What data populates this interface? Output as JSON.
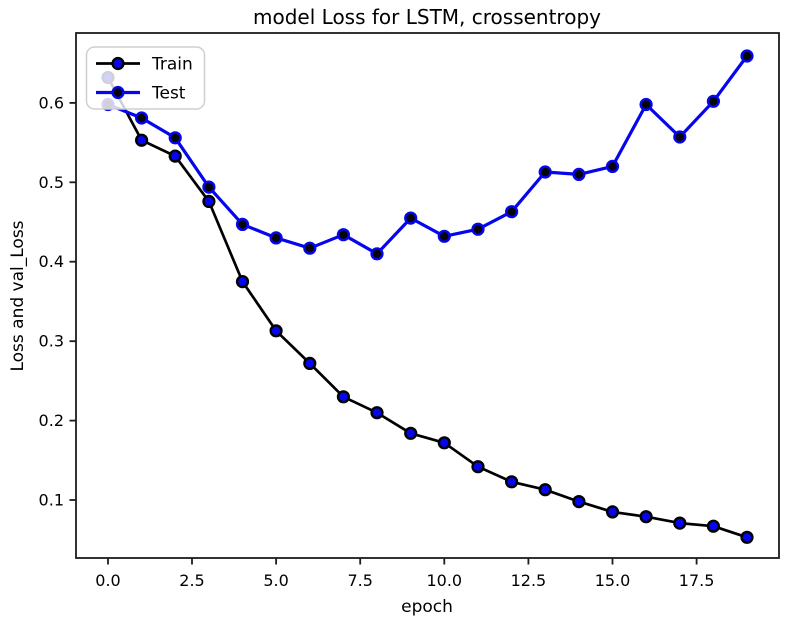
{
  "chart_data": {
    "type": "line",
    "title": "model Loss for LSTM, crossentropy",
    "xlabel": "epoch",
    "ylabel": "Loss and val_Loss",
    "grid": false,
    "background_color": "#ffffff",
    "axis_color": "#1c1c1c",
    "xlim": [
      -0.95,
      19.95
    ],
    "ylim": [
      0.027,
      0.688
    ],
    "x": [
      0,
      1,
      2,
      3,
      4,
      5,
      6,
      7,
      8,
      9,
      10,
      11,
      12,
      13,
      14,
      15,
      16,
      17,
      18,
      19
    ],
    "series": [
      {
        "name": "Train",
        "line_color": "#000000",
        "marker": "o",
        "marker_face": "#0505ee",
        "marker_edge": "#000000",
        "values": [
          0.632,
          0.553,
          0.533,
          0.476,
          0.375,
          0.313,
          0.272,
          0.23,
          0.21,
          0.184,
          0.172,
          0.142,
          0.123,
          0.113,
          0.098,
          0.085,
          0.079,
          0.071,
          0.067,
          0.053
        ]
      },
      {
        "name": "Test",
        "line_color": "#0505ee",
        "marker": "o",
        "marker_face": "#050508",
        "marker_edge": "#0505ee",
        "values": [
          0.598,
          0.581,
          0.556,
          0.494,
          0.447,
          0.43,
          0.417,
          0.434,
          0.41,
          0.455,
          0.432,
          0.441,
          0.463,
          0.513,
          0.51,
          0.52,
          0.598,
          0.557,
          0.602,
          0.659
        ]
      }
    ],
    "x_tick_values": [
      0,
      2.5,
      5,
      7.5,
      10,
      12.5,
      15,
      17.5
    ],
    "x_tick_labels": [
      "0.0",
      "2.5",
      "5.0",
      "7.5",
      "10.0",
      "12.5",
      "15.0",
      "17.5"
    ],
    "y_tick_values": [
      0.1,
      0.2,
      0.3,
      0.4,
      0.5,
      0.6
    ],
    "y_tick_labels": [
      "0.1",
      "0.2",
      "0.3",
      "0.4",
      "0.5",
      "0.6"
    ],
    "legend": {
      "position": "upper left",
      "labels": [
        "Train",
        "Test"
      ],
      "border_color": "#cfcfcf",
      "fill_color": "rgba(255,255,255,0.82)"
    }
  }
}
